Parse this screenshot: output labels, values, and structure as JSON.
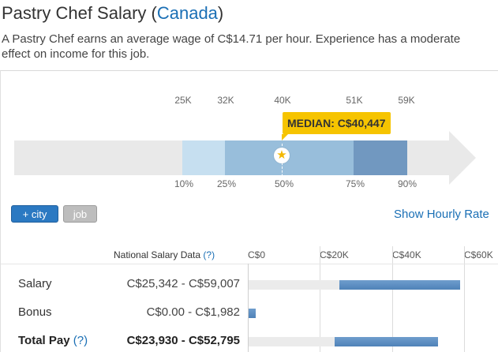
{
  "header": {
    "title_prefix": "Pastry Chef Salary (",
    "country": "Canada",
    "title_suffix": ")",
    "summary": "A Pastry Chef earns an average wage of C$14.71 per hour. Experience has a moderate effect on income for this job."
  },
  "distribution": {
    "top_ticks": [
      {
        "label": "25K"
      },
      {
        "label": "32K"
      },
      {
        "label": "40K"
      },
      {
        "label": "51K"
      },
      {
        "label": "59K"
      }
    ],
    "bottom_ticks": [
      {
        "label": "10%"
      },
      {
        "label": "25%"
      },
      {
        "label": "50%"
      },
      {
        "label": "75%"
      },
      {
        "label": "90%"
      }
    ],
    "median_label": "MEDIAN: C$40,447",
    "median_icon": "star-icon"
  },
  "controls": {
    "city_button": "+ city",
    "job_button": "job",
    "hourly_link": "Show Hourly Rate"
  },
  "table": {
    "header_label": "National Salary Data",
    "help_mark": "(?)",
    "axis_labels": [
      "C$0",
      "C$20K",
      "C$40K",
      "C$60K"
    ],
    "axis_max": 60000,
    "rows": [
      {
        "label": "Salary",
        "help": "",
        "range": "C$25,342 - C$59,007",
        "low": 25342,
        "high": 59007,
        "bold": false
      },
      {
        "label": "Bonus",
        "help": "",
        "range": "C$0.00 - C$1,982",
        "low": 0,
        "high": 1982,
        "bold": false
      },
      {
        "label": "Total Pay",
        "help": "(?)",
        "range": "C$23,930 - C$52,795",
        "low": 23930,
        "high": 52795,
        "bold": true
      }
    ]
  },
  "colors": {
    "link": "#1a6fb5",
    "median_badge": "#f6c400",
    "band_10_25": "#c6dff0",
    "band_25_75": "#98bedb",
    "band_75_90": "#7198c0",
    "bar_fill": "#5a8cc2"
  }
}
